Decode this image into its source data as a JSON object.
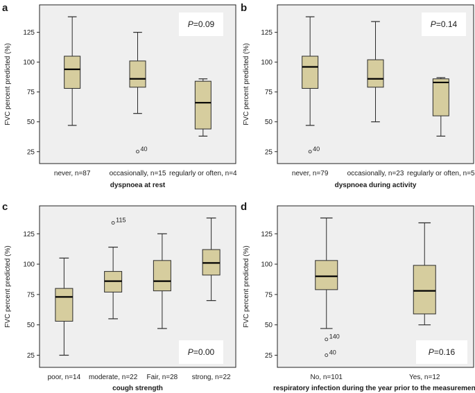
{
  "colors": {
    "plot_background": "#efefef",
    "box_fill": "#d6cd9e",
    "box_stroke": "#2a2a2a",
    "annotation_background": "#ffffff"
  },
  "chart_data": [
    {
      "type": "box",
      "panel": "a",
      "ylabel": "FVC percent predicted (%)",
      "xlabel": "dyspnoea at rest",
      "yticks": [
        25,
        50,
        75,
        100,
        125
      ],
      "ylim": [
        15,
        148
      ],
      "p_text": "P=0.09",
      "p_prefix": "P",
      "p_value": "=0.09",
      "categories": [
        "never, n=87",
        "occasionally, n=15",
        "regularly or often, n=4"
      ],
      "boxes": [
        {
          "min": 47,
          "q1": 78,
          "median": 94,
          "q3": 105,
          "max": 138,
          "outliers": []
        },
        {
          "min": 57,
          "q1": 79,
          "median": 86,
          "q3": 101,
          "max": 125,
          "outliers": [
            {
              "value": 25,
              "label": "40"
            }
          ]
        },
        {
          "min": 38,
          "q1": 44,
          "median": 66,
          "q3": 84,
          "max": 86,
          "outliers": []
        }
      ]
    },
    {
      "type": "box",
      "panel": "b",
      "ylabel": "FVC percent predicted (%)",
      "xlabel": "dyspnoea during activity",
      "yticks": [
        25,
        50,
        75,
        100,
        125
      ],
      "ylim": [
        15,
        148
      ],
      "p_text": "P=0.14",
      "p_prefix": "P",
      "p_value": "=0.14",
      "categories": [
        "never, n=79",
        "occasionally, n=23",
        "regularly or often, n=5"
      ],
      "boxes": [
        {
          "min": 47,
          "q1": 78,
          "median": 96,
          "q3": 105,
          "max": 138,
          "outliers": [
            {
              "value": 25,
              "label": "40"
            }
          ]
        },
        {
          "min": 50,
          "q1": 79,
          "median": 86,
          "q3": 102,
          "max": 134,
          "outliers": []
        },
        {
          "min": 38,
          "q1": 55,
          "median": 83,
          "q3": 86,
          "max": 87,
          "outliers": []
        }
      ]
    },
    {
      "type": "box",
      "panel": "c",
      "ylabel": "FVC percent predicted (%)",
      "xlabel": "cough strength",
      "yticks": [
        25,
        50,
        75,
        100,
        125
      ],
      "ylim": [
        15,
        148
      ],
      "p_text": "P=0.00",
      "p_prefix": "P",
      "p_value": "=0.00",
      "categories": [
        "poor, n=14",
        "moderate, n=22",
        "Fair, n=28",
        "strong, n=22"
      ],
      "boxes": [
        {
          "min": 25,
          "q1": 53,
          "median": 73,
          "q3": 80,
          "max": 105,
          "outliers": []
        },
        {
          "min": 55,
          "q1": 77,
          "median": 86,
          "q3": 94,
          "max": 114,
          "outliers": [
            {
              "value": 134,
              "label": "115"
            }
          ]
        },
        {
          "min": 47,
          "q1": 78,
          "median": 86,
          "q3": 103,
          "max": 125,
          "outliers": []
        },
        {
          "min": 70,
          "q1": 91,
          "median": 101,
          "q3": 112,
          "max": 138,
          "outliers": []
        }
      ]
    },
    {
      "type": "box",
      "panel": "d",
      "ylabel": "FVC percent predicted (%)",
      "xlabel": "respiratory infection during the year prior to the measurement",
      "yticks": [
        25,
        50,
        75,
        100,
        125
      ],
      "ylim": [
        15,
        148
      ],
      "p_text": "P=0.16",
      "p_prefix": "P",
      "p_value": "=0.16",
      "categories": [
        "No, n=101",
        "Yes, n=12"
      ],
      "boxes": [
        {
          "min": 47,
          "q1": 79,
          "median": 90,
          "q3": 103,
          "max": 138,
          "outliers": [
            {
              "value": 38,
              "label": "140"
            },
            {
              "value": 25,
              "label": "40"
            }
          ]
        },
        {
          "min": 50,
          "q1": 59,
          "median": 78,
          "q3": 99,
          "max": 134,
          "outliers": []
        }
      ]
    }
  ]
}
